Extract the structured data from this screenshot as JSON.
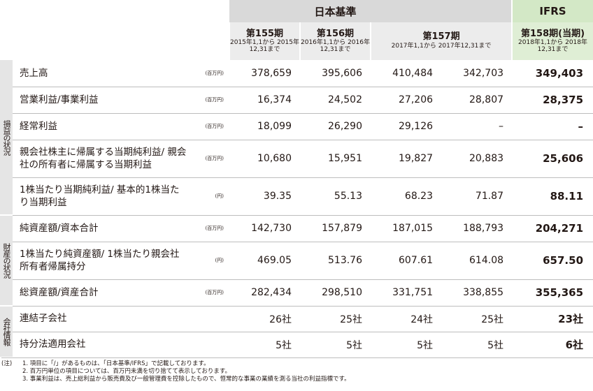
{
  "header": {
    "japan_gaap": "日本基準",
    "ifrs": "IFRS"
  },
  "periods": [
    {
      "name": "第155期",
      "range": "2015年1,1から 2015年12,31まで"
    },
    {
      "name": "第156期",
      "range": "2016年1,1から 2016年12,31まで"
    },
    {
      "name": "第157期",
      "range": "2017年1,1から 2017年12,31まで"
    },
    {
      "name": "第158期(当期)",
      "range": "2018年1,1から 2018年12,31まで"
    }
  ],
  "sections": {
    "profit_loss": "損益の状況",
    "financial": "財産の状況",
    "company": "会社情報"
  },
  "rows": [
    {
      "label": "売上高",
      "unit": "(百万円)",
      "v": [
        "378,659",
        "395,606",
        "410,484",
        "342,703",
        "349,403"
      ]
    },
    {
      "label": "営業利益/事業利益",
      "unit": "(百万円)",
      "v": [
        "16,374",
        "24,502",
        "27,206",
        "28,807",
        "28,375"
      ]
    },
    {
      "label": "経常利益",
      "unit": "(百万円)",
      "v": [
        "18,099",
        "26,290",
        "29,126",
        "–",
        "–"
      ]
    },
    {
      "label": "親会社株主に帰属する当期純利益/ 親会社の所有者に帰属する当期利益",
      "unit": "(百万円)",
      "v": [
        "10,680",
        "15,951",
        "19,827",
        "20,883",
        "25,606"
      ]
    },
    {
      "label": "1株当たり当期純利益/ 基本的1株当たり当期利益",
      "unit": "(円)",
      "v": [
        "39.35",
        "55.13",
        "68.23",
        "71.87",
        "88.11"
      ]
    },
    {
      "label": "純資産額/資本合計",
      "unit": "(百万円)",
      "v": [
        "142,730",
        "157,879",
        "187,015",
        "188,793",
        "204,271"
      ]
    },
    {
      "label": "1株当たり純資産額/ 1株当たり親会社所有者帰属持分",
      "unit": "(円)",
      "v": [
        "469.05",
        "513.76",
        "607.61",
        "614.08",
        "657.50"
      ]
    },
    {
      "label": "総資産額/資産合計",
      "unit": "(百万円)",
      "v": [
        "282,434",
        "298,510",
        "331,751",
        "338,855",
        "355,365"
      ]
    },
    {
      "label": "連結子会社",
      "unit": "",
      "v": [
        "26社",
        "25社",
        "24社",
        "25社",
        "23社"
      ]
    },
    {
      "label": "持分法適用会社",
      "unit": "",
      "v": [
        "5社",
        "5社",
        "5社",
        "5社",
        "6社"
      ]
    }
  ],
  "notes": {
    "prefix": "(注)",
    "n1": "1. 項目に「/」があるものは、「日本基準/IFRS」で記載しております。",
    "n2": "2. 百万円単位の項目については、百万円未満を切り捨てて表示しております。",
    "n3": "3. 事業利益は、売上総利益から販売費及び一般管理費を控除したもので、恒常的な事業の業績を測る当社の利益指標です。"
  }
}
